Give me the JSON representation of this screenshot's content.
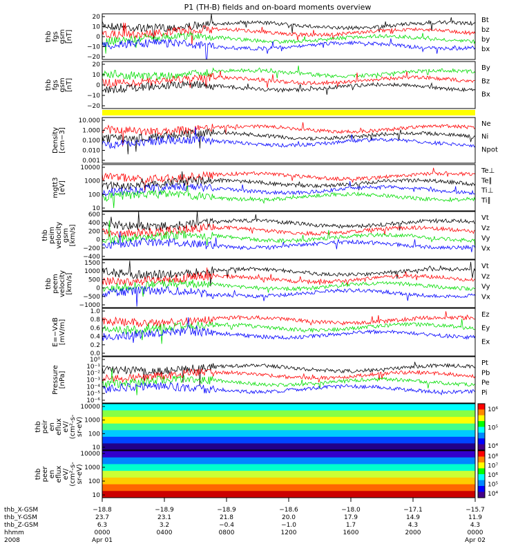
{
  "title": "P1 (TH-B) fields and on-board moments overview",
  "colors": {
    "black": "#000000",
    "red": "#ff0000",
    "green": "#00dd00",
    "blue": "#0000ff",
    "yellow": "#ffff00"
  },
  "chart_data": [
    {
      "type": "line",
      "ylabel": [
        "thb",
        "fgs",
        "gsm",
        "[nT]"
      ],
      "yticks": [
        "20",
        "10",
        "0",
        "−10",
        "−20"
      ],
      "ylim": [
        -20,
        20
      ],
      "series": [
        {
          "name": "Bt",
          "color": "#000000"
        },
        {
          "name": "bz",
          "color": "#ff0000"
        },
        {
          "name": "by",
          "color": "#00dd00"
        },
        {
          "name": "bx",
          "color": "#0000ff"
        }
      ]
    },
    {
      "type": "line",
      "ylabel": [
        "thb",
        "fgs",
        "gsm",
        "[nT]"
      ],
      "yticks": [
        "20",
        "10",
        "0",
        "−10",
        "−20"
      ],
      "ylim": [
        -20,
        20
      ],
      "series": [
        {
          "name": "By",
          "color": "#00dd00"
        },
        {
          "name": "Bz",
          "color": "#ff0000"
        },
        {
          "name": "Bx",
          "color": "#000000"
        }
      ]
    },
    {
      "type": "line",
      "ylabel": [
        "Density",
        "[cm−3]"
      ],
      "yticks": [
        "10.000",
        "1.000",
        "0.100",
        "0.010",
        "0.001"
      ],
      "ylim": [
        0.001,
        10
      ],
      "scale": "log",
      "series": [
        {
          "name": "Ne",
          "color": "#ff0000"
        },
        {
          "name": "Ni",
          "color": "#000000"
        },
        {
          "name": "Npot",
          "color": "#0000ff"
        }
      ]
    },
    {
      "type": "line",
      "ylabel": [
        "mgtt3",
        "[eV]"
      ],
      "yticks": [
        "10000",
        "1000",
        "100",
        "10"
      ],
      "ylim": [
        10,
        10000
      ],
      "scale": "log",
      "series": [
        {
          "name": "Te⊥",
          "color": "#ff0000"
        },
        {
          "name": "Te∥",
          "color": "#000000"
        },
        {
          "name": "Ti⊥",
          "color": "#0000ff"
        },
        {
          "name": "Ti∥",
          "color": "#00dd00"
        }
      ]
    },
    {
      "type": "line",
      "ylabel": [
        "thb",
        "peim",
        "velocity",
        "gsm",
        "[km/s]"
      ],
      "yticks": [
        "600",
        "400",
        "200",
        "0",
        "−200",
        "−400"
      ],
      "ylim": [
        -400,
        600
      ],
      "series": [
        {
          "name": "Vt",
          "color": "#000000"
        },
        {
          "name": "Vz",
          "color": "#ff0000"
        },
        {
          "name": "Vy",
          "color": "#00dd00"
        },
        {
          "name": "Vx",
          "color": "#0000ff"
        }
      ]
    },
    {
      "type": "line",
      "ylabel": [
        "thb",
        "peem",
        "velocity",
        "[km/s]"
      ],
      "yticks": [
        "1500",
        "1000",
        "500",
        "0",
        "−500",
        "−1000"
      ],
      "ylim": [
        -1500,
        1500
      ],
      "series": [
        {
          "name": "Vt",
          "color": "#000000"
        },
        {
          "name": "Vz",
          "color": "#ff0000"
        },
        {
          "name": "Vy",
          "color": "#00dd00"
        },
        {
          "name": "Vx",
          "color": "#0000ff"
        }
      ]
    },
    {
      "type": "line",
      "ylabel": [
        "E=−VxB",
        "[mV/m]"
      ],
      "yticks": [
        "1.0",
        "0.8",
        "0.6",
        "0.4",
        "0.2",
        "0.0"
      ],
      "ylim": [
        0,
        1
      ],
      "series": [
        {
          "name": "Ez",
          "color": "#ff0000"
        },
        {
          "name": "Ey",
          "color": "#00dd00"
        },
        {
          "name": "Ex",
          "color": "#0000ff"
        }
      ]
    },
    {
      "type": "line",
      "ylabel": [
        "Pressure",
        "[nPa]"
      ],
      "yticks": [
        "10⁰",
        "10⁻¹",
        "10⁻²",
        "10⁻³",
        "10⁻⁴",
        "10⁻⁵",
        "10⁻⁶"
      ],
      "ylim": [
        1e-06,
        1
      ],
      "scale": "log",
      "series": [
        {
          "name": "Pt",
          "color": "#000000"
        },
        {
          "name": "Pb",
          "color": "#ff0000"
        },
        {
          "name": "Pe",
          "color": "#00dd00"
        },
        {
          "name": "Pi",
          "color": "#0000ff"
        }
      ]
    },
    {
      "type": "heatmap",
      "ylabel": [
        "thb",
        "peir",
        "en",
        "eflux",
        "eV/",
        "(cm²-s-",
        "sr-eV)"
      ],
      "yticks": [
        "10000",
        "1000",
        "100",
        "10"
      ],
      "colorbar_ticks": [
        "10⁶",
        "10⁵",
        "10⁴"
      ]
    },
    {
      "type": "heatmap",
      "ylabel": [
        "thb",
        "peer",
        "en",
        "eflux",
        "eV/",
        "(cm²-s-",
        "sr-eV)"
      ],
      "yticks": [
        "10000",
        "1000",
        "100",
        "10"
      ],
      "colorbar_ticks": [
        "10⁸",
        "10⁷",
        "10⁶",
        "10⁵",
        "10⁴"
      ]
    }
  ],
  "xaxis": {
    "row_labels": [
      "thb_X-GSM",
      "thb_Y-GSM",
      "thb_Z-GSM",
      "hhmm",
      "2008"
    ],
    "columns": [
      [
        "−18.8",
        "23.7",
        "6.3",
        "0000",
        "Apr 01"
      ],
      [
        "−18.9",
        "23.1",
        "3.2",
        "0400",
        ""
      ],
      [
        "−18.9",
        "21.8",
        "−0.4",
        "0800",
        ""
      ],
      [
        "−18.6",
        "20.0",
        "−1.0",
        "1200",
        ""
      ],
      [
        "−18.0",
        "17.9",
        "1.7",
        "1600",
        ""
      ],
      [
        "−17.1",
        "14.9",
        "4.3",
        "2000",
        ""
      ],
      [
        "−15.7",
        "11.9",
        "4.3",
        "0000",
        "Apr 02"
      ]
    ]
  }
}
